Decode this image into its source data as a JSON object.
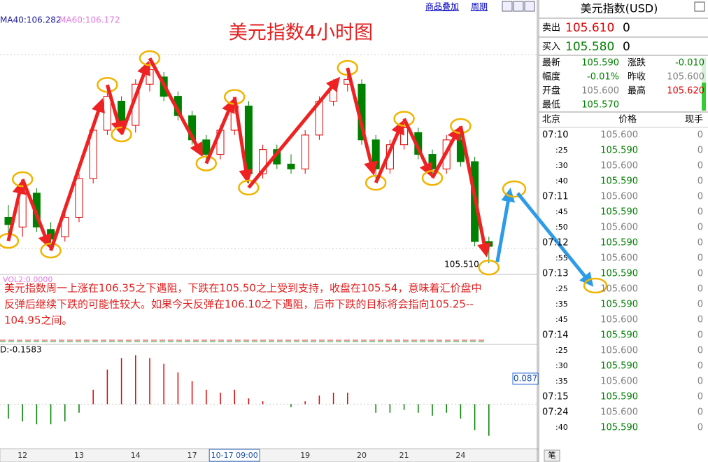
{
  "chart_data": {
    "type": "candlestick",
    "title": "美元指数4小时图",
    "ma_labels": [
      {
        "text": "MA40:106.282",
        "color": "#1a1a9c"
      },
      {
        "text": "MA60:106.172",
        "color": "#e07ae0"
      }
    ],
    "last_price_label": "105.510",
    "volume_label": "VOL2:0.0000",
    "categories": [
      null,
      "12",
      null,
      null,
      null,
      "13",
      null,
      null,
      null,
      "14",
      null,
      null,
      null,
      "17",
      null,
      null,
      "10-17 09:00",
      null,
      null,
      null,
      null,
      "19",
      null,
      null,
      null,
      "20",
      null,
      null,
      "21",
      null,
      null,
      null,
      "24",
      null,
      null
    ],
    "open": [
      105.7,
      105.66,
      105.8,
      105.65,
      105.62,
      105.7,
      105.86,
      106.06,
      106.18,
      106.08,
      106.25,
      106.28,
      106.2,
      106.12,
      106.02,
      105.96,
      106.06,
      106.16,
      105.88,
      105.98,
      105.92,
      105.9,
      106.04,
      106.18,
      106.25,
      106.25,
      106.02,
      105.9,
      106.0,
      106.05,
      105.96,
      105.9,
      106.02,
      105.93,
      105.6
    ],
    "high": [
      105.75,
      105.84,
      105.82,
      105.68,
      105.72,
      105.88,
      106.08,
      106.23,
      106.2,
      106.27,
      106.34,
      106.3,
      106.22,
      106.14,
      106.04,
      106.08,
      106.18,
      106.18,
      106.0,
      106.0,
      105.96,
      106.06,
      106.2,
      106.27,
      106.3,
      106.27,
      106.04,
      106.02,
      106.09,
      106.07,
      105.98,
      106.04,
      106.06,
      105.95,
      105.62
    ],
    "low": [
      105.62,
      105.62,
      105.64,
      105.58,
      105.6,
      105.68,
      105.84,
      106.04,
      106.06,
      106.05,
      106.22,
      106.18,
      106.1,
      106.0,
      105.94,
      105.94,
      106.04,
      105.84,
      105.86,
      105.9,
      105.88,
      105.88,
      106.02,
      106.16,
      106.22,
      106.0,
      105.86,
      105.88,
      105.98,
      105.94,
      105.88,
      105.88,
      105.91,
      105.58,
      105.51
    ],
    "close": [
      105.67,
      105.82,
      105.66,
      105.61,
      105.7,
      105.86,
      106.06,
      106.2,
      106.08,
      106.25,
      106.31,
      106.2,
      106.12,
      106.02,
      105.96,
      106.06,
      106.16,
      105.88,
      105.98,
      105.92,
      105.9,
      106.04,
      106.18,
      106.25,
      106.27,
      106.02,
      105.9,
      106.0,
      106.07,
      105.96,
      105.9,
      106.02,
      105.93,
      105.6,
      105.58
    ],
    "ylim": [
      105.47,
      106.54
    ],
    "up_color": "#e00000",
    "down_color": "#008000",
    "indicator": {
      "label": "D:-0.1583",
      "value_label": "0.087",
      "values": [
        -0.05,
        -0.06,
        -0.07,
        -0.07,
        -0.06,
        -0.03,
        0.05,
        0.12,
        0.16,
        0.17,
        0.16,
        0.14,
        0.11,
        0.08,
        0.05,
        0.04,
        0.05,
        0.02,
        0.01,
        0,
        -0.01,
        0.01,
        0.03,
        0.04,
        0.04,
        0,
        -0.03,
        -0.03,
        -0.02,
        -0.03,
        -0.04,
        -0.03,
        -0.05,
        -0.09,
        -0.11
      ],
      "ylim": [
        -0.14,
        0.2
      ]
    }
  },
  "toolbar": {
    "overlay": "商品叠加",
    "period": "周期"
  },
  "annotation": {
    "lines": [
      "美元指数周一上涨在106.35之下遇阻，下跌在105.50之上受到支持，收盘在105.54，意味着汇价盘中",
      "反弹后继续下跌的可能性较大。如果今天反弹在106.10之下遇阻，后市下跌的目标将会指向105.25--",
      "104.95之间。"
    ]
  },
  "quote": {
    "title": "美元指数(USD)",
    "sell": {
      "label": "卖出",
      "price": "105.610",
      "size": "0"
    },
    "buy": {
      "label": "买入",
      "price": "105.580",
      "size": "0"
    },
    "fields": [
      {
        "label": "最新",
        "value": "105.590",
        "color": "#008000"
      },
      {
        "label": "涨跌",
        "value": "-0.010",
        "color": "#008000"
      },
      {
        "label": "幅度",
        "value": "-0.01%",
        "color": "#008000"
      },
      {
        "label": "昨收",
        "value": "105.600",
        "color": "#808080"
      },
      {
        "label": "开盘",
        "value": "105.600",
        "color": "#808080"
      },
      {
        "label": "最高",
        "value": "105.620",
        "color": "#e00000"
      },
      {
        "label": "最低",
        "value": "105.570",
        "color": "#008000"
      }
    ]
  },
  "ticks": {
    "headers": [
      "北京",
      "价格",
      "现手"
    ],
    "rows": [
      [
        "07:10",
        "105.600",
        "0"
      ],
      [
        ":25",
        "105.590",
        "0"
      ],
      [
        ":30",
        "105.600",
        "0"
      ],
      [
        ":40",
        "105.590",
        "0"
      ],
      [
        "07:11",
        "105.600",
        "0"
      ],
      [
        ":45",
        "105.590",
        "0"
      ],
      [
        ":50",
        "105.600",
        "0"
      ],
      [
        "07:12",
        "105.590",
        "0"
      ],
      [
        ":55",
        "105.600",
        "0"
      ],
      [
        "07:13",
        "105.590",
        "0"
      ],
      [
        ":25",
        "105.600",
        "0"
      ],
      [
        ":35",
        "105.590",
        "0"
      ],
      [
        ":45",
        "105.600",
        "0"
      ],
      [
        "07:14",
        "105.590",
        "0"
      ],
      [
        ":25",
        "105.600",
        "0"
      ],
      [
        ":30",
        "105.590",
        "0"
      ],
      [
        ":35",
        "105.600",
        "0"
      ],
      [
        "07:15",
        "105.590",
        "0"
      ],
      [
        "07:24",
        "105.600",
        "0"
      ],
      [
        ":40",
        "105.590",
        "0"
      ]
    ]
  },
  "tab": "笔"
}
